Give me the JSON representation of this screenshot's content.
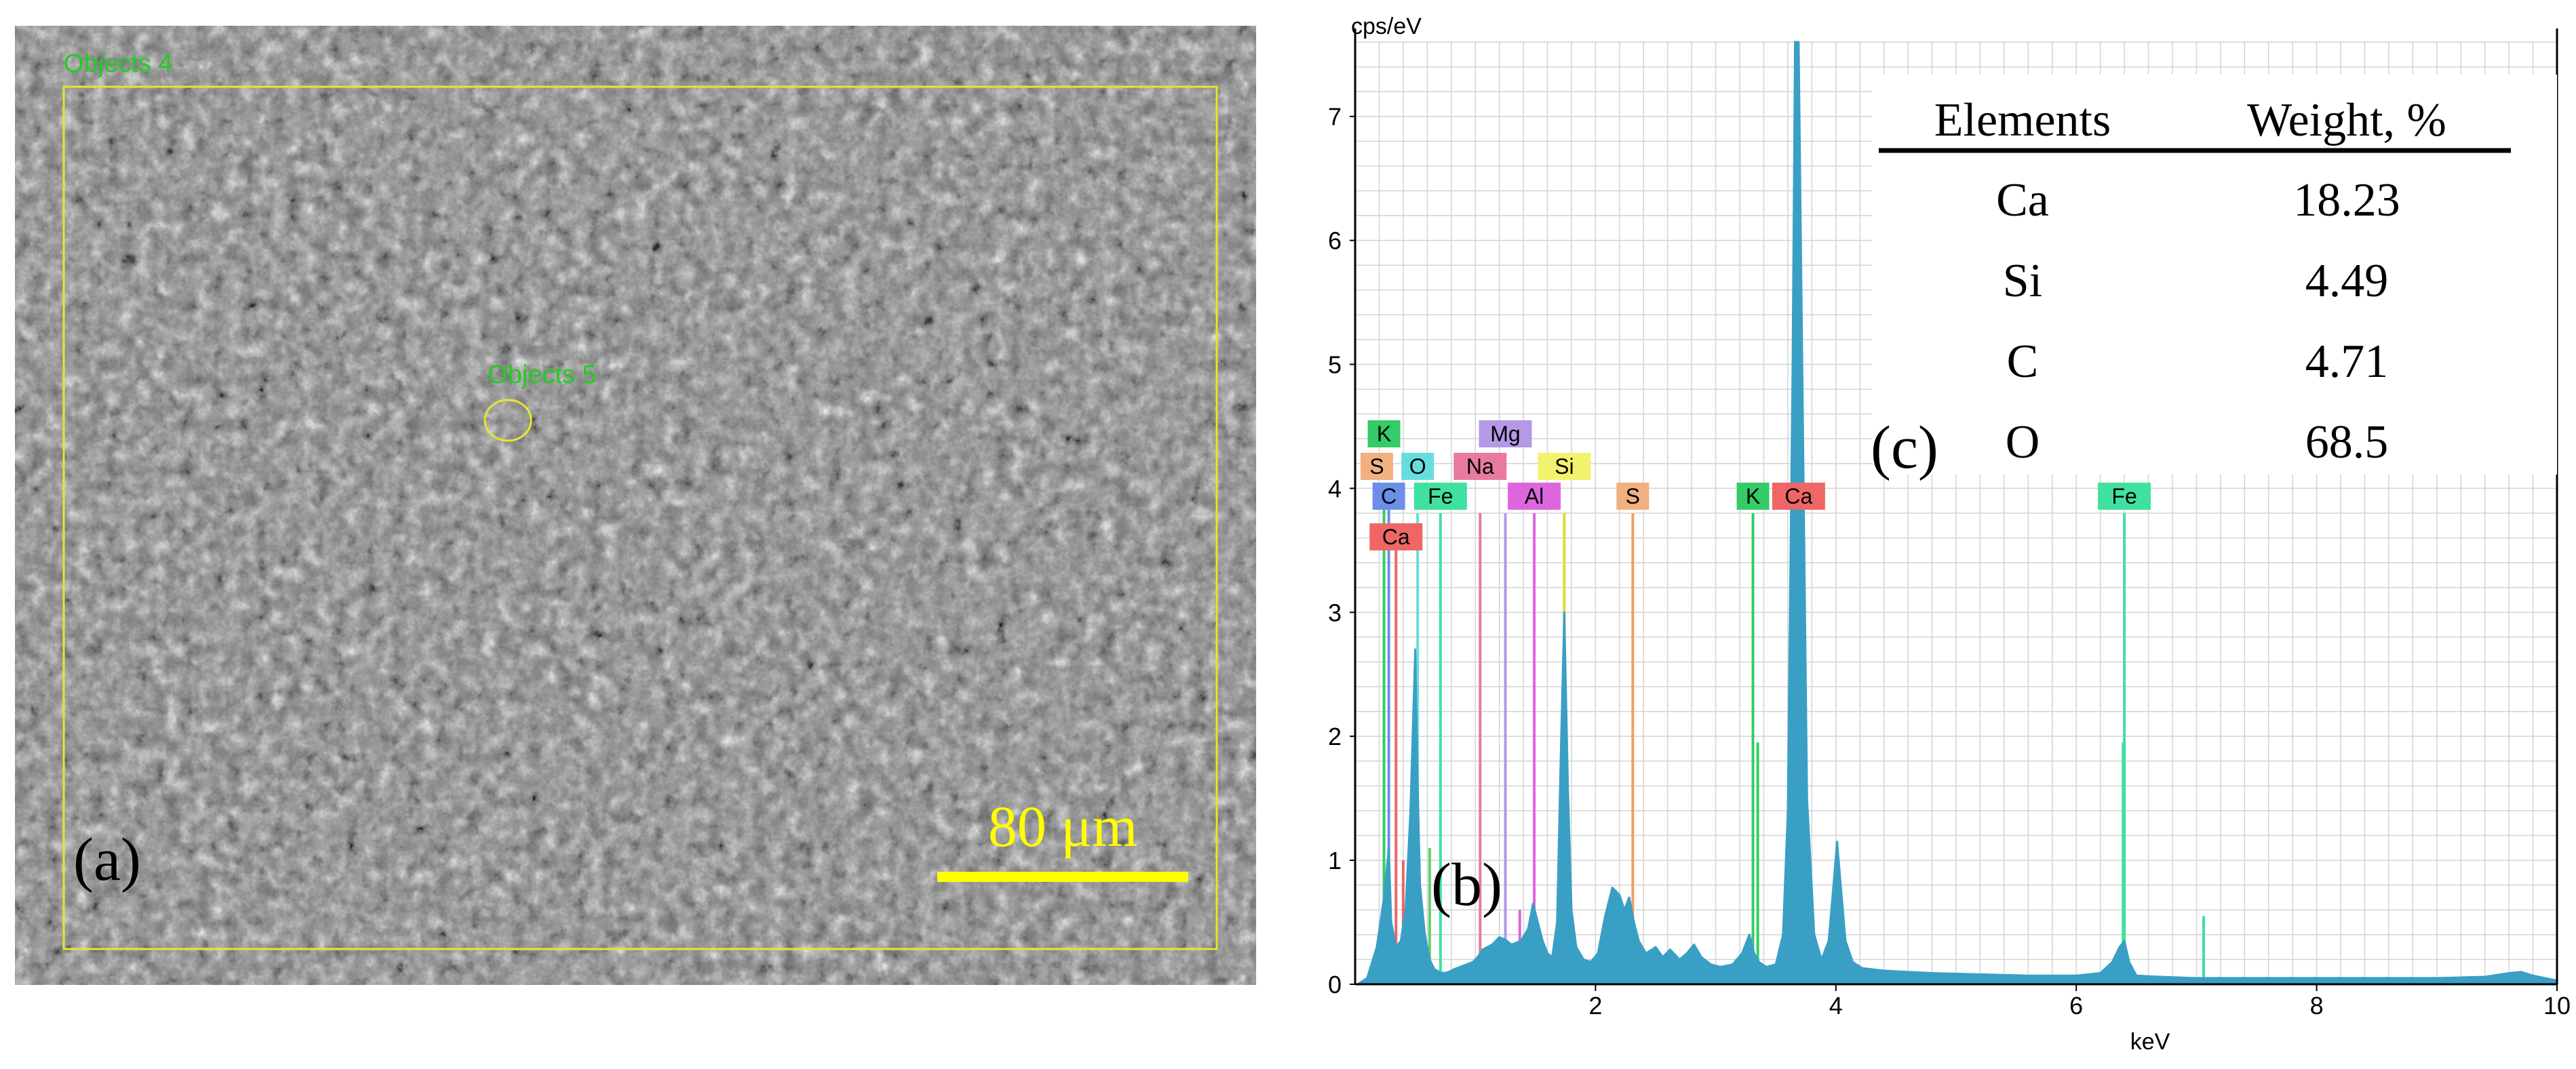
{
  "colors": {
    "spectrum": "#3a9fc4",
    "grid": "#d3d3d3",
    "roi": "#e6e62e",
    "roi_label": "#22cc22",
    "scalebar": "#ffff00"
  },
  "sem": {
    "panel_label": "(a)",
    "roi_rect_label": "Objects 4",
    "roi_ellipse_label": "Objects 5",
    "scalebar_label": "80 μm"
  },
  "eds": {
    "panel_label": "(b)",
    "table_label": "(c)",
    "table": {
      "headers": [
        "Elements",
        "Weight, %"
      ],
      "rows": [
        {
          "element": "Ca",
          "weight": "18.23"
        },
        {
          "element": "Si",
          "weight": "4.49"
        },
        {
          "element": "C",
          "weight": "4.71"
        },
        {
          "element": "O",
          "weight": "68.5"
        }
      ]
    }
  },
  "chart_data": {
    "type": "line",
    "title": "",
    "xlabel": "keV",
    "ylabel": "cps/eV",
    "xlim": [
      0,
      10
    ],
    "ylim": [
      0,
      7.6
    ],
    "grid": true,
    "x_ticks": [
      2,
      4,
      6,
      8,
      10
    ],
    "y_ticks": [
      0,
      1,
      2,
      3,
      4,
      5,
      6,
      7
    ],
    "series": [
      {
        "x": [
          0.02,
          0.1,
          0.18,
          0.24,
          0.28,
          0.3,
          0.34,
          0.38,
          0.42,
          0.46,
          0.5,
          0.52,
          0.54,
          0.58,
          0.62,
          0.66,
          0.7,
          0.74,
          0.78,
          0.82,
          0.9,
          0.98,
          1.02,
          1.06,
          1.1,
          1.14,
          1.2,
          1.25,
          1.3,
          1.38,
          1.44,
          1.48,
          1.52,
          1.56,
          1.6,
          1.64,
          1.68,
          1.71,
          1.74,
          1.77,
          1.8,
          1.84,
          1.9,
          1.96,
          2.02,
          2.08,
          2.14,
          2.2,
          2.24,
          2.28,
          2.32,
          2.36,
          2.42,
          2.5,
          2.56,
          2.62,
          2.7,
          2.76,
          2.82,
          2.88,
          2.96,
          3.04,
          3.14,
          3.22,
          3.28,
          3.32,
          3.36,
          3.42,
          3.5,
          3.56,
          3.6,
          3.64,
          3.66,
          3.69,
          3.72,
          3.76,
          3.82,
          3.88,
          3.94,
          3.98,
          4.01,
          4.04,
          4.08,
          4.14,
          4.22,
          4.4,
          4.8,
          5.2,
          5.6,
          6.0,
          6.2,
          6.3,
          6.36,
          6.4,
          6.44,
          6.5,
          6.7,
          7.0,
          7.5,
          8.0,
          8.5,
          9.0,
          9.4,
          9.6,
          9.7,
          9.8,
          9.9,
          10.0
        ],
        "y": [
          0.0,
          0.05,
          0.3,
          0.7,
          1.1,
          0.5,
          0.3,
          0.35,
          0.6,
          1.4,
          2.7,
          1.6,
          0.8,
          0.4,
          0.2,
          0.12,
          0.1,
          0.09,
          0.1,
          0.12,
          0.15,
          0.18,
          0.22,
          0.28,
          0.3,
          0.32,
          0.38,
          0.36,
          0.32,
          0.35,
          0.45,
          0.65,
          0.5,
          0.35,
          0.25,
          0.22,
          0.5,
          1.8,
          3.0,
          1.6,
          0.6,
          0.3,
          0.2,
          0.18,
          0.25,
          0.55,
          0.78,
          0.72,
          0.6,
          0.7,
          0.5,
          0.35,
          0.25,
          0.3,
          0.22,
          0.28,
          0.2,
          0.25,
          0.32,
          0.22,
          0.16,
          0.14,
          0.16,
          0.25,
          0.4,
          0.25,
          0.18,
          0.14,
          0.16,
          0.4,
          1.4,
          5.0,
          7.6,
          7.6,
          5.0,
          1.5,
          0.4,
          0.2,
          0.35,
          0.8,
          1.15,
          0.8,
          0.35,
          0.18,
          0.13,
          0.11,
          0.09,
          0.08,
          0.07,
          0.07,
          0.09,
          0.18,
          0.3,
          0.35,
          0.18,
          0.07,
          0.06,
          0.05,
          0.05,
          0.05,
          0.05,
          0.05,
          0.06,
          0.09,
          0.1,
          0.07,
          0.05,
          0.03
        ]
      }
    ],
    "annotations": [
      {
        "label": "K",
        "energy": 0.24,
        "color": "#33cc66",
        "row": 0
      },
      {
        "label": "S",
        "energy": 0.18,
        "color": "#f0b080",
        "row": 1
      },
      {
        "label": "O",
        "energy": 0.52,
        "color": "#66dddd",
        "row": 1
      },
      {
        "label": "Mg",
        "energy": 1.25,
        "color": "#b399e6",
        "row": 0
      },
      {
        "label": "Na",
        "energy": 1.04,
        "color": "#e87aa0",
        "row": 1
      },
      {
        "label": "Si",
        "energy": 1.74,
        "color": "#f2f26e",
        "row": 1
      },
      {
        "label": "C",
        "energy": 0.28,
        "color": "#6b8fe8",
        "row": 2
      },
      {
        "label": "Fe",
        "energy": 0.71,
        "color": "#40e0a0",
        "row": 2
      },
      {
        "label": "Al",
        "energy": 1.49,
        "color": "#dd66dd",
        "row": 2
      },
      {
        "label": "S",
        "energy": 2.31,
        "color": "#f0b080",
        "row": 2
      },
      {
        "label": "K",
        "energy": 3.31,
        "color": "#33cc66",
        "row": 2
      },
      {
        "label": "Ca",
        "energy": 3.69,
        "color": "#ee6666",
        "row": 2
      },
      {
        "label": "Fe",
        "energy": 6.4,
        "color": "#40e0a0",
        "row": 2
      },
      {
        "label": "Ca",
        "energy": 0.34,
        "color": "#ee6666",
        "row": 3
      }
    ],
    "marker_lines": [
      {
        "energy": 0.24,
        "height": 3.85,
        "color": "#33cc66"
      },
      {
        "energy": 0.28,
        "height": 3.85,
        "color": "#6b8fe8"
      },
      {
        "energy": 0.34,
        "height": 3.6,
        "color": "#ee6666"
      },
      {
        "energy": 0.52,
        "height": 3.8,
        "color": "#66dddd"
      },
      {
        "energy": 0.71,
        "height": 3.8,
        "color": "#40e0a0"
      },
      {
        "energy": 1.04,
        "height": 3.8,
        "color": "#e87aa0"
      },
      {
        "energy": 1.25,
        "height": 3.8,
        "color": "#b399e6"
      },
      {
        "energy": 1.49,
        "height": 3.8,
        "color": "#dd66dd"
      },
      {
        "energy": 1.74,
        "height": 3.8,
        "color": "#dddd33"
      },
      {
        "energy": 2.31,
        "height": 3.8,
        "color": "#f0a060"
      },
      {
        "energy": 3.31,
        "height": 3.8,
        "color": "#33cc66"
      },
      {
        "energy": 3.69,
        "height": 3.8,
        "color": "#ee6666"
      },
      {
        "energy": 6.4,
        "height": 3.8,
        "color": "#40e0a0"
      },
      {
        "energy": 0.4,
        "height": 1.0,
        "color": "#ee6666"
      },
      {
        "energy": 0.46,
        "height": 1.1,
        "color": "#b399e6"
      },
      {
        "energy": 0.62,
        "height": 1.1,
        "color": "#66cc66"
      },
      {
        "energy": 1.37,
        "height": 0.6,
        "color": "#dd66dd"
      },
      {
        "energy": 3.57,
        "height": 0.3,
        "color": "#33cc66"
      },
      {
        "energy": 4.01,
        "height": 0.5,
        "color": "#ee6666"
      },
      {
        "energy": 7.06,
        "height": 0.55,
        "color": "#40e0a0"
      },
      {
        "energy": 3.35,
        "height": 1.95,
        "color": "#33cc66"
      },
      {
        "energy": 6.39,
        "height": 1.95,
        "color": "#40e0a0"
      }
    ]
  }
}
